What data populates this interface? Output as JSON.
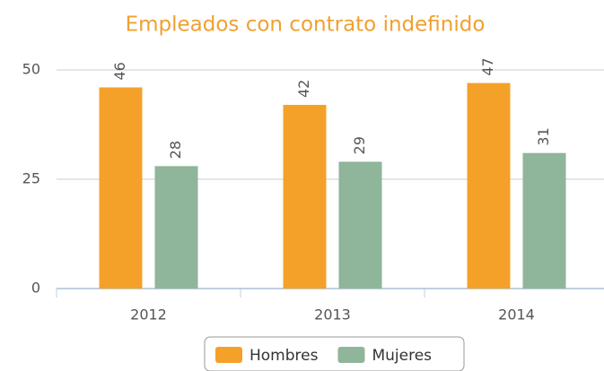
{
  "chart_data": {
    "type": "bar",
    "title": "Empleados con contrato indefinido",
    "categories": [
      "2012",
      "2013",
      "2014"
    ],
    "series": [
      {
        "name": "Hombres",
        "color": "#f4a12a",
        "values": [
          46,
          42,
          47
        ]
      },
      {
        "name": "Mujeres",
        "color": "#8fb59b",
        "values": [
          28,
          29,
          31
        ]
      }
    ],
    "ylim": [
      0,
      50
    ],
    "yticks": [
      0,
      25,
      50
    ],
    "grid": true,
    "legend": "bottom"
  }
}
